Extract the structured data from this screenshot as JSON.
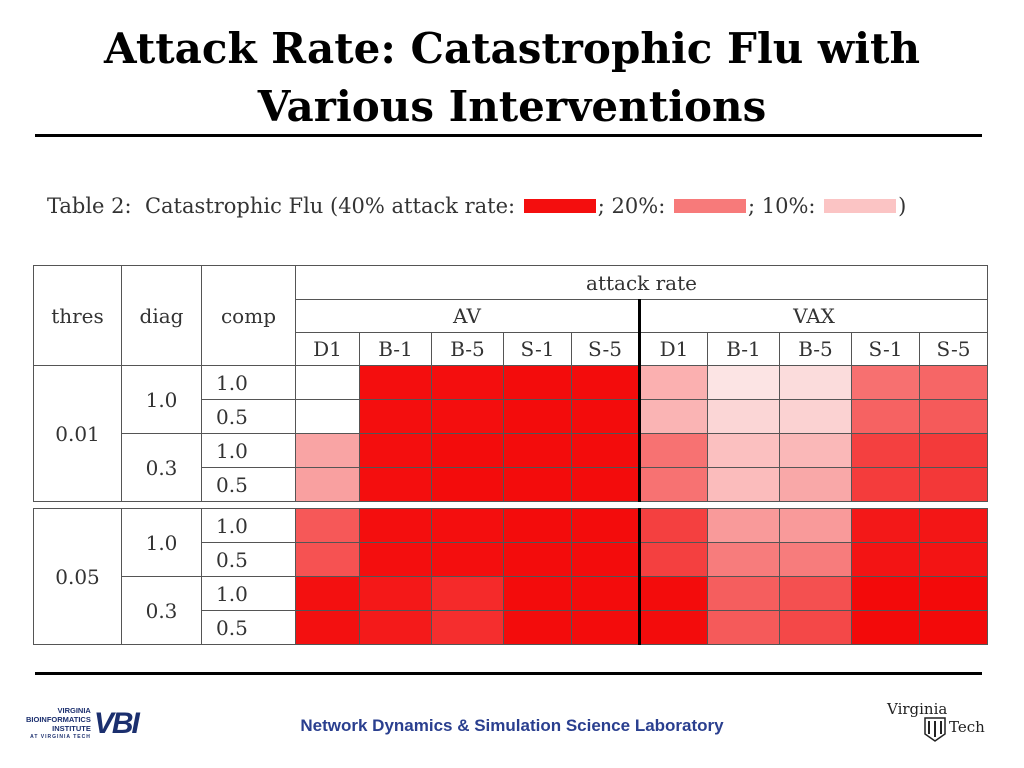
{
  "slide": {
    "title_line1": "Attack Rate: Catastrophic Flu with",
    "title_line2": "Various Interventions"
  },
  "caption": {
    "prefix": "Table 2:  Catastrophic Flu (40% attack rate: ",
    "sep1": "; 20%: ",
    "sep2": "; 10%: ",
    "suffix": ")",
    "legend_colors": [
      "#f40e0e",
      "#f77a7a",
      "#fbc4c4"
    ]
  },
  "table": {
    "headers": {
      "thres": "thres",
      "diag": "diag",
      "comp": "comp",
      "attack_rate": "attack rate",
      "av": "AV",
      "vax": "VAX",
      "av_cols": [
        "D1",
        "B-1",
        "B-5",
        "S-1",
        "S-5"
      ],
      "vax_cols": [
        "D1",
        "B-1",
        "B-5",
        "S-1",
        "S-5"
      ]
    },
    "blocks": [
      {
        "thres": "0.01",
        "groups": [
          {
            "diag": "1.0",
            "rows": [
              {
                "comp": "1.0",
                "cells": [
                  "#ffffff",
                  "#f40e0e",
                  "#f40e0e",
                  "#f30c0c",
                  "#f30c0c",
                  "#fbb0b0",
                  "#fce4e4",
                  "#fbdcdc",
                  "#f77070",
                  "#f66666"
                ]
              },
              {
                "comp": "0.5",
                "cells": [
                  "#ffffff",
                  "#f40e0e",
                  "#f40e0e",
                  "#f30c0c",
                  "#f30c0c",
                  "#fab4b4",
                  "#fbd6d6",
                  "#fbd2d2",
                  "#f66262",
                  "#f55a5a"
                ]
              }
            ]
          },
          {
            "diag": "0.3",
            "rows": [
              {
                "comp": "1.0",
                "cells": [
                  "#f9a4a4",
                  "#f40e0e",
                  "#f30c0c",
                  "#f30c0c",
                  "#f30c0c",
                  "#f77272",
                  "#fbc0c0",
                  "#fab8b8",
                  "#f44040",
                  "#f33a3a"
                ]
              },
              {
                "comp": "0.5",
                "cells": [
                  "#f9a0a0",
                  "#f40e0e",
                  "#f30c0c",
                  "#f30c0c",
                  "#f30c0c",
                  "#f77272",
                  "#fbbcbc",
                  "#f9a8a8",
                  "#f43c3c",
                  "#f33838"
                ]
              }
            ]
          }
        ]
      },
      {
        "thres": "0.05",
        "groups": [
          {
            "diag": "1.0",
            "rows": [
              {
                "comp": "1.0",
                "cells": [
                  "#f65858",
                  "#f40e0e",
                  "#f40e0e",
                  "#f30c0c",
                  "#f30c0c",
                  "#f44040",
                  "#f99a9a",
                  "#f99a9a",
                  "#f31818",
                  "#f31616"
                ]
              },
              {
                "comp": "0.5",
                "cells": [
                  "#f65252",
                  "#f40e0e",
                  "#f40e0e",
                  "#f30c0c",
                  "#f30c0c",
                  "#f44040",
                  "#f77c7c",
                  "#f77c7c",
                  "#f31414",
                  "#f31414"
                ]
              }
            ]
          },
          {
            "diag": "0.3",
            "rows": [
              {
                "comp": "1.0",
                "cells": [
                  "#f31010",
                  "#f41818",
                  "#f52a2a",
                  "#f30c0c",
                  "#f30c0c",
                  "#f30c0c",
                  "#f55e5e",
                  "#f45050",
                  "#f30a0a",
                  "#f30a0a"
                ]
              },
              {
                "comp": "0.5",
                "cells": [
                  "#f31010",
                  "#f41a1a",
                  "#f52e2e",
                  "#f30c0c",
                  "#f30c0c",
                  "#f30c0c",
                  "#f55a5a",
                  "#f44848",
                  "#f30a0a",
                  "#f30a0a"
                ]
              }
            ]
          }
        ]
      }
    ]
  },
  "footer": {
    "lab_name": "Network Dynamics & Simulation Science Laboratory",
    "vbi_text": [
      "VIRGINIA",
      "BIOINFORMATICS",
      "INSTITUTE",
      "AT VIRGINIA TECH"
    ],
    "vbi_mark": "VBI",
    "vt_line1": "Virginia",
    "vt_line2": "Tech"
  }
}
